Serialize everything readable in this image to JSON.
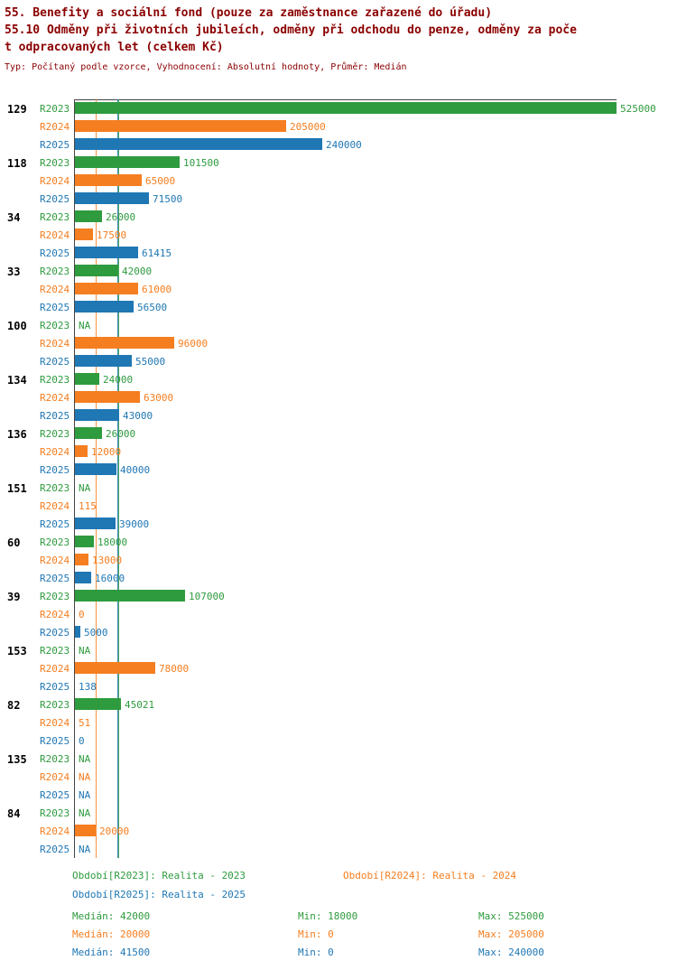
{
  "title": {
    "line1": "55. Benefity a sociální fond (pouze za zaměstnance zařazené do úřadu)",
    "line2": "55.10 Odměny při životních jubileích, odměny při odchodu do penze, odměny za poče",
    "line3": "t odpracovaných let (celkem Kč)",
    "subtitle": "Typ: Počítaný podle vzorce, Vyhodnocení: Absolutní hodnoty, Průměr: Medián"
  },
  "colors": {
    "r2023": "#2e9b3e",
    "r2024": "#f57e20",
    "r2025": "#1f77b4",
    "title": "#8b0000",
    "axis": "#444444"
  },
  "chart_data": {
    "type": "bar",
    "orientation": "horizontal",
    "title": "55. Benefity a sociální fond — 55.10 Odměny při životních jubileích, odměny při odchodu do penze, odměny za počet odpracovaných let (celkem Kč)",
    "xlabel": "",
    "ylabel": "",
    "xlim": [
      0,
      525000
    ],
    "grid": "median-lines-only",
    "series_labels": [
      "R2023",
      "R2024",
      "R2025"
    ],
    "series_color_keys": [
      "r2023",
      "r2024",
      "r2025"
    ],
    "groups": [
      {
        "id": "129",
        "values": [
          525000,
          205000,
          240000
        ],
        "labels": [
          "525000",
          "205000",
          "240000"
        ]
      },
      {
        "id": "118",
        "values": [
          101500,
          65000,
          71500
        ],
        "labels": [
          "101500",
          "65000",
          "71500"
        ]
      },
      {
        "id": "34",
        "values": [
          26000,
          17500,
          61415
        ],
        "labels": [
          "26000",
          "17500",
          "61415"
        ]
      },
      {
        "id": "33",
        "values": [
          42000,
          61000,
          56500
        ],
        "labels": [
          "42000",
          "61000",
          "56500"
        ]
      },
      {
        "id": "100",
        "values": [
          null,
          96000,
          55000
        ],
        "labels": [
          "NA",
          "96000",
          "55000"
        ]
      },
      {
        "id": "134",
        "values": [
          24000,
          63000,
          43000
        ],
        "labels": [
          "24000",
          "63000",
          "43000"
        ]
      },
      {
        "id": "136",
        "values": [
          26000,
          12000,
          40000
        ],
        "labels": [
          "26000",
          "12000",
          "40000"
        ]
      },
      {
        "id": "151",
        "values": [
          null,
          115,
          39000
        ],
        "labels": [
          "NA",
          "115",
          "39000"
        ]
      },
      {
        "id": "60",
        "values": [
          18000,
          13000,
          16000
        ],
        "labels": [
          "18000",
          "13000",
          "16000"
        ]
      },
      {
        "id": "39",
        "values": [
          107000,
          0,
          5000
        ],
        "labels": [
          "107000",
          "0",
          "5000"
        ]
      },
      {
        "id": "153",
        "values": [
          null,
          78000,
          138
        ],
        "labels": [
          "NA",
          "78000",
          "138"
        ]
      },
      {
        "id": "82",
        "values": [
          45021,
          51,
          0
        ],
        "labels": [
          "45021",
          "51",
          "0"
        ]
      },
      {
        "id": "135",
        "values": [
          null,
          null,
          null
        ],
        "labels": [
          "NA",
          "NA",
          "NA"
        ]
      },
      {
        "id": "84",
        "values": [
          null,
          20000,
          null
        ],
        "labels": [
          "NA",
          "20000",
          "NA"
        ]
      }
    ],
    "median_lines": [
      {
        "series": "R2024",
        "value": 20000,
        "color_key": "r2024"
      },
      {
        "series": "R2025",
        "value": 41500,
        "color_key": "r2025"
      },
      {
        "series": "R2023",
        "value": 42000,
        "color_key": "r2023"
      }
    ],
    "summary": [
      {
        "series": "R2023",
        "median": 42000,
        "min": 18000,
        "max": 525000
      },
      {
        "series": "R2024",
        "median": 20000,
        "min": 0,
        "max": 205000
      },
      {
        "series": "R2025",
        "median": 41500,
        "min": 0,
        "max": 240000
      }
    ]
  },
  "legend": [
    {
      "label": "Období[R2023]: Realita - 2023",
      "color_key": "r2023"
    },
    {
      "label": "Období[R2024]: Realita - 2024",
      "color_key": "r2024"
    },
    {
      "label": "Období[R2025]: Realita - 2025",
      "color_key": "r2025"
    }
  ],
  "stats": [
    {
      "median": "Medián: 42000",
      "min": "Min: 18000",
      "max": "Max: 525000",
      "color_key": "r2023"
    },
    {
      "median": "Medián: 20000",
      "min": "Min: 0",
      "max": "Max: 205000",
      "color_key": "r2024"
    },
    {
      "median": "Medián: 41500",
      "min": "Min: 0",
      "max": "Max: 240000",
      "color_key": "r2025"
    }
  ]
}
